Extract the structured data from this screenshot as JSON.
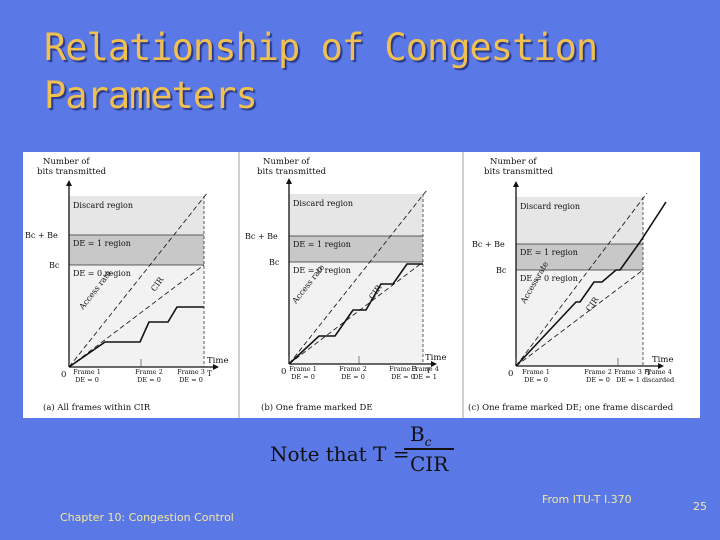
{
  "slide": {
    "title_line1": "Relationship of Congestion",
    "title_line2": "Parameters",
    "source": "From ITU-T I.370",
    "footer": "Chapter 10: Congestion Control",
    "page_number": "25"
  },
  "note": {
    "lead": "Note that T =",
    "numerator": "B",
    "numerator_sub": "c",
    "denominator": "CIR"
  },
  "colors": {
    "background": "#5a78e6",
    "title": "#f0c050",
    "discard_region": "#e6e6e6",
    "de1_region": "#c8c8c8",
    "de0_region": "#f2f2f2"
  },
  "panels": [
    {
      "y_axis_label_1": "Number of",
      "y_axis_label_2": "bits transmitted",
      "bc_be_label": "Bc + Be",
      "bc_label": "Bc",
      "discard_label": "Discard region",
      "de1_label": "DE = 1 region",
      "de0_label": "DE = 0 region",
      "access_rate_label": "Access rate",
      "cir_label": "CIR",
      "time_label": "Time",
      "origin_label": "0",
      "t_label": "T",
      "frames": [
        {
          "name": "Frame 1",
          "de": "DE = 0"
        },
        {
          "name": "Frame 2",
          "de": "DE = 0"
        },
        {
          "name": "Frame 3",
          "de": "DE = 0"
        }
      ],
      "caption": "(a) All frames within CIR"
    },
    {
      "y_axis_label_1": "Number of",
      "y_axis_label_2": "bits transmitted",
      "bc_be_label": "Bc + Be",
      "bc_label": "Bc",
      "discard_label": "Discard region",
      "de1_label": "DE = 1 region",
      "de0_label": "DE = 0 region",
      "access_rate_label": "Access rate",
      "cir_label": "CIR",
      "time_label": "Time",
      "origin_label": "0",
      "t_label": "T",
      "frames": [
        {
          "name": "Frame 1",
          "de": "DE = 0"
        },
        {
          "name": "Frame 2",
          "de": "DE = 0"
        },
        {
          "name": "Frame 3",
          "de": "DE = 0"
        },
        {
          "name": "Frame 4",
          "de": "DE = 1"
        }
      ],
      "caption": "(b) One frame marked DE"
    },
    {
      "y_axis_label_1": "Number of",
      "y_axis_label_2": "bits transmitted",
      "bc_be_label": "Bc + Be",
      "bc_label": "Bc",
      "discard_label": "Discard region",
      "de1_label": "DE = 1 region",
      "de0_label": "DE = 0 region",
      "access_rate_label": "Access rate",
      "cir_label": "CIR",
      "time_label": "Time",
      "origin_label": "0",
      "t_label": "T",
      "frames": [
        {
          "name": "Frame 1",
          "de": "DE = 0"
        },
        {
          "name": "Frame 2",
          "de": "DE = 0"
        },
        {
          "name": "Frame 3",
          "de": "DE = 1"
        },
        {
          "name": "Frame 4",
          "de": "discarded"
        }
      ],
      "caption": "(c) One frame marked DE; one frame discarded"
    }
  ]
}
